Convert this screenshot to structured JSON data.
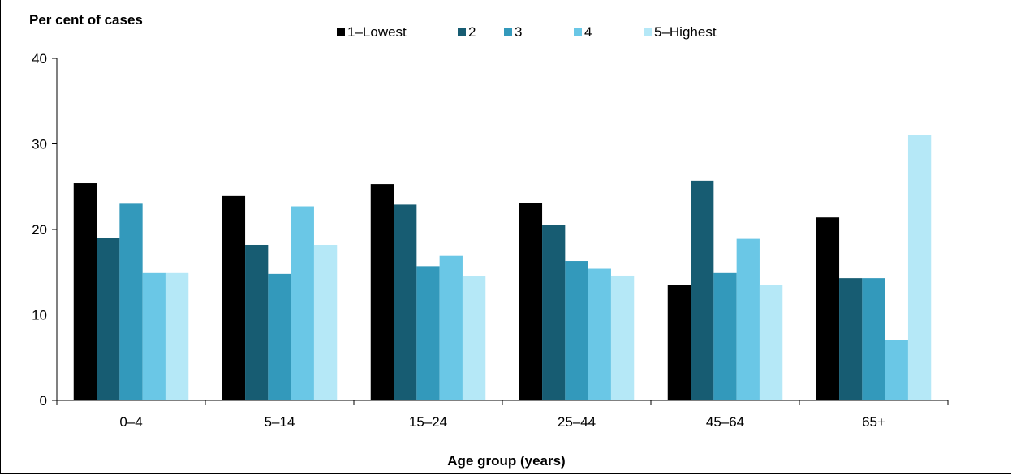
{
  "chart_data": {
    "type": "bar",
    "title": "",
    "ylabel": "Per cent of cases",
    "xlabel": "Age group (years)",
    "ylim": [
      0,
      40
    ],
    "yticks": [
      0,
      10,
      20,
      30,
      40
    ],
    "legend_position": "top",
    "categories": [
      "0–4",
      "5–14",
      "15–24",
      "25–44",
      "45–64",
      "65+"
    ],
    "series": [
      {
        "name": "1–Lowest",
        "color": "#000000",
        "values": [
          25.4,
          23.9,
          25.3,
          23.1,
          13.5,
          21.4
        ]
      },
      {
        "name": "2",
        "color": "#175c72",
        "values": [
          19.0,
          18.2,
          22.9,
          20.5,
          25.7,
          14.3
        ]
      },
      {
        "name": "3",
        "color": "#3399bb",
        "values": [
          23.0,
          14.8,
          15.7,
          16.3,
          14.9,
          14.3
        ]
      },
      {
        "name": "4",
        "color": "#6ac7e6",
        "values": [
          14.9,
          22.7,
          16.9,
          15.4,
          18.9,
          7.1
        ]
      },
      {
        "name": "5–Highest",
        "color": "#b5e8f7",
        "values": [
          14.9,
          18.2,
          14.5,
          14.6,
          13.5,
          31.0
        ]
      }
    ]
  }
}
